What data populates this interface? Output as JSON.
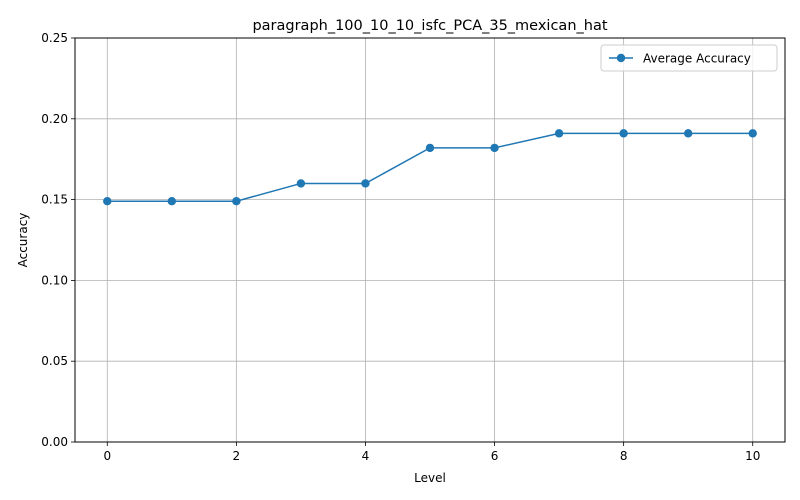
{
  "chart_data": {
    "type": "line",
    "title": "paragraph_100_10_10_isfc_PCA_35_mexican_hat",
    "xlabel": "Level",
    "ylabel": "Accuracy",
    "x": [
      0,
      1,
      2,
      3,
      4,
      5,
      6,
      7,
      8,
      9,
      10
    ],
    "xticks": [
      "0",
      "2",
      "4",
      "6",
      "8",
      "10"
    ],
    "yticks": [
      "0.00",
      "0.05",
      "0.10",
      "0.15",
      "0.20",
      "0.25"
    ],
    "xlim": [
      -0.5,
      10.5
    ],
    "ylim": [
      0,
      0.25
    ],
    "grid": true,
    "legend_position": "top-right",
    "series": [
      {
        "name": "Average Accuracy",
        "color": "#1f77b4",
        "marker": "circle",
        "values": [
          0.149,
          0.149,
          0.149,
          0.16,
          0.16,
          0.182,
          0.182,
          0.191,
          0.191,
          0.191,
          0.191
        ]
      }
    ]
  }
}
